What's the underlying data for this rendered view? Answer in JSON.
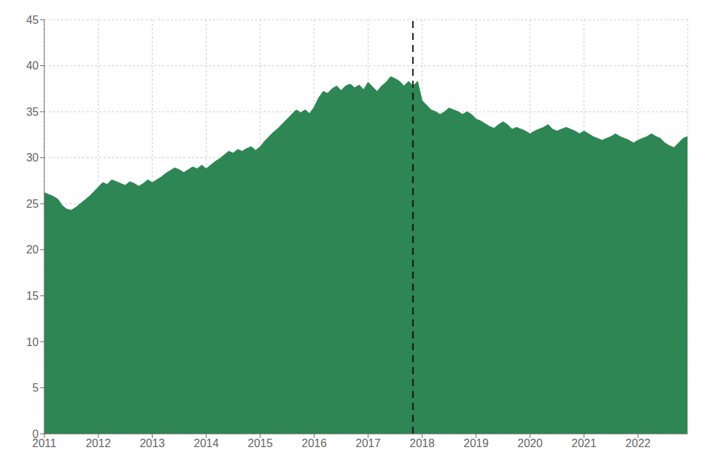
{
  "chart_data": {
    "type": "area",
    "color": "#2d8653",
    "grid": true,
    "xlim": [
      2011.0,
      2022.92
    ],
    "xticks": [
      2011,
      2012,
      2013,
      2014,
      2015,
      2016,
      2017,
      2018,
      2019,
      2020,
      2021,
      2022
    ],
    "ylim": [
      0,
      45
    ],
    "yticks": [
      0,
      5,
      10,
      15,
      20,
      25,
      30,
      35,
      40,
      45
    ],
    "annotations": [
      {
        "type": "vline",
        "x": 2017.83,
        "color": "#111111",
        "line_style": "dashed"
      }
    ],
    "x": [
      2011,
      2011.0833333333333,
      2011.1666666666667,
      2011.25,
      2011.3333333333333,
      2011.4166666666667,
      2011.5,
      2011.5833333333333,
      2011.6666666666667,
      2011.75,
      2011.8333333333333,
      2011.9166666666667,
      2012,
      2012.0833333333333,
      2012.1666666666667,
      2012.25,
      2012.3333333333333,
      2012.4166666666667,
      2012.5,
      2012.5833333333333,
      2012.6666666666667,
      2012.75,
      2012.8333333333333,
      2012.9166666666667,
      2013,
      2013.0833333333333,
      2013.1666666666667,
      2013.25,
      2013.3333333333333,
      2013.4166666666667,
      2013.5,
      2013.5833333333333,
      2013.6666666666667,
      2013.75,
      2013.8333333333333,
      2013.9166666666667,
      2014,
      2014.0833333333333,
      2014.1666666666667,
      2014.25,
      2014.3333333333333,
      2014.4166666666667,
      2014.5,
      2014.5833333333333,
      2014.6666666666667,
      2014.75,
      2014.8333333333333,
      2014.9166666666667,
      2015,
      2015.0833333333333,
      2015.1666666666667,
      2015.25,
      2015.3333333333333,
      2015.4166666666667,
      2015.5,
      2015.5833333333333,
      2015.6666666666667,
      2015.75,
      2015.8333333333333,
      2015.9166666666667,
      2016,
      2016.0833333333333,
      2016.1666666666667,
      2016.25,
      2016.3333333333333,
      2016.4166666666667,
      2016.5,
      2016.5833333333333,
      2016.6666666666667,
      2016.75,
      2016.8333333333333,
      2016.9166666666667,
      2017,
      2017.0833333333333,
      2017.1666666666667,
      2017.25,
      2017.3333333333333,
      2017.4166666666667,
      2017.5,
      2017.5833333333333,
      2017.6666666666667,
      2017.75,
      2017.8333333333333,
      2017.9166666666667,
      2018,
      2018.0833333333333,
      2018.1666666666667,
      2018.25,
      2018.3333333333333,
      2018.4166666666667,
      2018.5,
      2018.5833333333333,
      2018.6666666666667,
      2018.75,
      2018.8333333333333,
      2018.9166666666667,
      2019,
      2019.0833333333333,
      2019.1666666666667,
      2019.25,
      2019.3333333333333,
      2019.4166666666667,
      2019.5,
      2019.5833333333333,
      2019.6666666666667,
      2019.75,
      2019.8333333333333,
      2019.9166666666667,
      2020,
      2020.0833333333333,
      2020.1666666666667,
      2020.25,
      2020.3333333333333,
      2020.4166666666667,
      2020.5,
      2020.5833333333333,
      2020.6666666666667,
      2020.75,
      2020.8333333333333,
      2020.9166666666667,
      2021,
      2021.0833333333333,
      2021.1666666666667,
      2021.25,
      2021.3333333333333,
      2021.4166666666667,
      2021.5,
      2021.5833333333333,
      2021.6666666666667,
      2021.75,
      2021.8333333333333,
      2021.9166666666667,
      2022,
      2022.0833333333333,
      2022.1666666666667,
      2022.25,
      2022.3333333333333,
      2022.4166666666667,
      2022.5,
      2022.5833333333333,
      2022.6666666666667,
      2022.75,
      2022.8333333333333,
      2022.9166666666667
    ],
    "values": [
      26.2,
      26.0,
      25.8,
      25.5,
      24.8,
      24.4,
      24.3,
      24.6,
      25.0,
      25.4,
      25.8,
      26.3,
      26.8,
      27.3,
      27.1,
      27.6,
      27.4,
      27.2,
      27.0,
      27.4,
      27.2,
      26.9,
      27.2,
      27.6,
      27.3,
      27.6,
      27.9,
      28.3,
      28.6,
      28.9,
      28.7,
      28.4,
      28.7,
      29.0,
      28.8,
      29.2,
      28.8,
      29.2,
      29.6,
      29.9,
      30.3,
      30.7,
      30.5,
      30.9,
      30.7,
      31.0,
      31.2,
      30.8,
      31.2,
      31.8,
      32.3,
      32.8,
      33.2,
      33.7,
      34.2,
      34.7,
      35.2,
      34.9,
      35.2,
      34.8,
      35.5,
      36.5,
      37.2,
      37.0,
      37.5,
      37.8,
      37.3,
      37.8,
      38.0,
      37.6,
      37.9,
      37.4,
      38.2,
      37.7,
      37.2,
      37.8,
      38.2,
      38.8,
      38.6,
      38.3,
      37.8,
      38.3,
      37.8,
      38.3,
      36.2,
      35.7,
      35.2,
      35.0,
      34.7,
      35.0,
      35.4,
      35.2,
      35.0,
      34.7,
      35.0,
      34.7,
      34.2,
      34.0,
      33.7,
      33.4,
      33.2,
      33.6,
      33.9,
      33.6,
      33.1,
      33.3,
      33.1,
      32.9,
      32.6,
      32.9,
      33.1,
      33.3,
      33.6,
      33.1,
      32.9,
      33.1,
      33.3,
      33.1,
      32.9,
      32.6,
      32.9,
      32.6,
      32.3,
      32.1,
      31.9,
      32.1,
      32.3,
      32.6,
      32.3,
      32.1,
      31.9,
      31.6,
      31.9,
      32.1,
      32.3,
      32.6,
      32.3,
      32.1,
      31.6,
      31.3,
      31.1,
      31.6,
      32.1,
      32.3
    ]
  }
}
